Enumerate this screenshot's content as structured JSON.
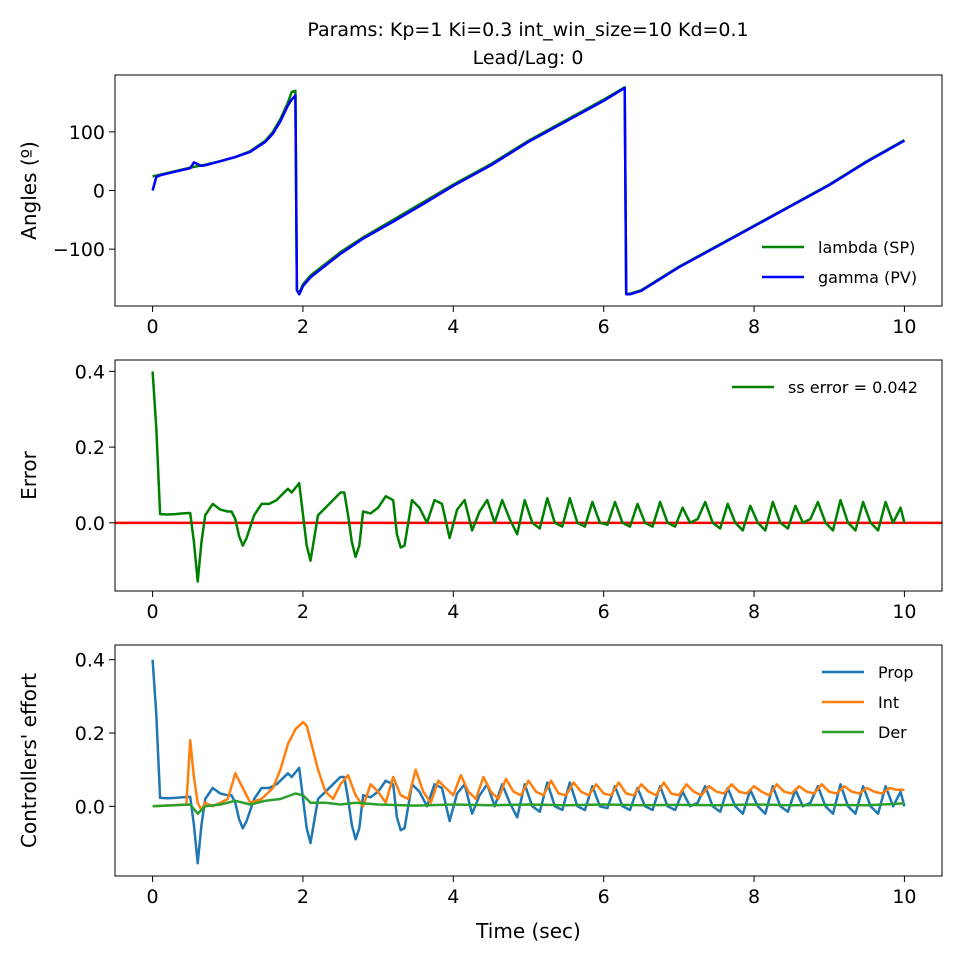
{
  "figure": {
    "title_line1": "Params: Kp=1 Ki=0.3 int_win_size=10 Kd=0.1",
    "title_line2": "Lead/Lag: 0",
    "xlabel": "Time (sec)"
  },
  "chart_data": [
    {
      "type": "line",
      "ylabel": "Angles (º)",
      "xlim": [
        -0.5,
        10.5
      ],
      "ylim": [
        -197,
        197
      ],
      "xticks": [
        0,
        2,
        4,
        6,
        8,
        10
      ],
      "yticks": [
        -100,
        0,
        100
      ],
      "ytick_labels": [
        "−100",
        "0",
        "100"
      ],
      "legend": "lower-right",
      "series": [
        {
          "name": "lambda (SP)",
          "color": "#008000",
          "x": [
            0,
            0.1,
            0.3,
            0.5,
            0.7,
            0.9,
            1.1,
            1.3,
            1.5,
            1.6,
            1.7,
            1.8,
            1.85,
            1.9,
            1.92,
            1.95,
            2.0,
            2.1,
            2.3,
            2.5,
            2.8,
            3.2,
            3.6,
            4.0,
            4.5,
            5.0,
            5.5,
            6.0,
            6.28,
            6.3,
            6.35,
            6.5,
            7.0,
            7.5,
            8.0,
            8.5,
            9.0,
            9.5,
            10.0
          ],
          "y": [
            24,
            27,
            33,
            39,
            44,
            50,
            57,
            67,
            85,
            100,
            122,
            150,
            168,
            170,
            -170,
            -175,
            -160,
            -145,
            -125,
            -105,
            -80,
            -50,
            -20,
            10,
            45,
            85,
            120,
            155,
            176,
            -176,
            -176,
            -170,
            -130,
            -95,
            -60,
            -25,
            10,
            50,
            86
          ]
        },
        {
          "name": "gamma (PV)",
          "color": "#0000ff",
          "x": [
            0,
            0.05,
            0.1,
            0.3,
            0.5,
            0.55,
            0.65,
            0.7,
            0.9,
            1.1,
            1.3,
            1.5,
            1.6,
            1.7,
            1.8,
            1.85,
            1.9,
            1.92,
            1.95,
            2.0,
            2.1,
            2.3,
            2.5,
            2.8,
            3.2,
            3.6,
            4.0,
            4.5,
            5.0,
            5.5,
            6.0,
            6.28,
            6.3,
            6.35,
            6.5,
            7.0,
            7.5,
            8.0,
            8.5,
            9.0,
            9.5,
            10.0
          ],
          "y": [
            0,
            23,
            26,
            32,
            38,
            48,
            42,
            43,
            50,
            57,
            66,
            83,
            97,
            118,
            145,
            155,
            162,
            -170,
            -177,
            -163,
            -148,
            -128,
            -108,
            -82,
            -53,
            -23,
            8,
            43,
            83,
            118,
            153,
            175,
            -177,
            -177,
            -171,
            -131,
            -96,
            -61,
            -26,
            9,
            49,
            85
          ]
        }
      ]
    },
    {
      "type": "line",
      "ylabel": "Error",
      "xlim": [
        -0.5,
        10.5
      ],
      "ylim": [
        -0.18,
        0.43
      ],
      "xticks": [
        0,
        2,
        4,
        6,
        8,
        10
      ],
      "yticks": [
        0.0,
        0.2,
        0.4
      ],
      "ytick_labels": [
        "0.0",
        "0.2",
        "0.4"
      ],
      "legend": "upper-right",
      "reference_line": {
        "y": 0,
        "color": "#ff0000"
      },
      "series": [
        {
          "name": "ss error = 0.042",
          "color": "#008000",
          "x": [
            0,
            0.05,
            0.1,
            0.2,
            0.3,
            0.4,
            0.5,
            0.55,
            0.6,
            0.65,
            0.7,
            0.8,
            0.9,
            1.0,
            1.05,
            1.1,
            1.15,
            1.2,
            1.25,
            1.35,
            1.45,
            1.55,
            1.65,
            1.7,
            1.8,
            1.85,
            1.95,
            2.05,
            2.1,
            2.2,
            2.3,
            2.4,
            2.5,
            2.55,
            2.6,
            2.65,
            2.7,
            2.75,
            2.8,
            2.9,
            3.0,
            3.1,
            3.2,
            3.25,
            3.3,
            3.35,
            3.45,
            3.55,
            3.65,
            3.75,
            3.85,
            3.95,
            4.05,
            4.15,
            4.25,
            4.35,
            4.45,
            4.55,
            4.65,
            4.75,
            4.85,
            4.95,
            5.05,
            5.15,
            5.25,
            5.35,
            5.45,
            5.55,
            5.65,
            5.75,
            5.85,
            5.95,
            6.05,
            6.15,
            6.25,
            6.35,
            6.45,
            6.55,
            6.65,
            6.75,
            6.85,
            6.95,
            7.05,
            7.15,
            7.25,
            7.35,
            7.45,
            7.55,
            7.65,
            7.75,
            7.85,
            7.95,
            8.05,
            8.15,
            8.25,
            8.35,
            8.45,
            8.55,
            8.65,
            8.75,
            8.85,
            8.95,
            9.05,
            9.15,
            9.25,
            9.35,
            9.45,
            9.55,
            9.65,
            9.75,
            9.85,
            9.95,
            10.0
          ],
          "y": [
            0.4,
            0.25,
            0.023,
            0.022,
            0.023,
            0.025,
            0.026,
            -0.05,
            -0.155,
            -0.05,
            0.02,
            0.05,
            0.035,
            0.03,
            0.03,
            0.01,
            -0.035,
            -0.06,
            -0.04,
            0.02,
            0.05,
            0.05,
            0.06,
            0.07,
            0.09,
            0.08,
            0.105,
            -0.06,
            -0.1,
            0.02,
            0.04,
            0.06,
            0.08,
            0.08,
            0.02,
            -0.05,
            -0.09,
            -0.06,
            0.03,
            0.025,
            0.04,
            0.07,
            0.06,
            -0.03,
            -0.065,
            -0.06,
            0.06,
            0.04,
            0.0,
            0.06,
            0.05,
            -0.04,
            0.035,
            0.06,
            -0.02,
            0.03,
            0.06,
            0.0,
            0.06,
            0.01,
            -0.03,
            0.06,
            0.0,
            -0.015,
            0.065,
            0.0,
            -0.01,
            0.065,
            0.0,
            -0.01,
            0.055,
            0.0,
            -0.005,
            0.055,
            0.0,
            -0.01,
            0.05,
            0.0,
            -0.01,
            0.055,
            0.0,
            -0.01,
            0.04,
            0.0,
            0.01,
            0.055,
            0.0,
            -0.015,
            0.05,
            0.0,
            -0.02,
            0.045,
            0.0,
            -0.02,
            0.055,
            0.0,
            -0.015,
            0.045,
            0.0,
            0.01,
            0.055,
            0.0,
            -0.02,
            0.06,
            0.0,
            -0.02,
            0.055,
            0.0,
            -0.02,
            0.055,
            0.0,
            0.04,
            0.0
          ]
        }
      ]
    },
    {
      "type": "line",
      "ylabel": "Controllers' effort",
      "xlim": [
        -0.5,
        10.5
      ],
      "ylim": [
        -0.19,
        0.44
      ],
      "xticks": [
        0,
        2,
        4,
        6,
        8,
        10
      ],
      "yticks": [
        0.0,
        0.2,
        0.4
      ],
      "ytick_labels": [
        "0.0",
        "0.2",
        "0.4"
      ],
      "xlabel": "Time (sec)",
      "legend": "upper-right",
      "series": [
        {
          "name": "Prop",
          "color": "#1f77b4",
          "x": [
            0,
            0.05,
            0.1,
            0.2,
            0.3,
            0.4,
            0.5,
            0.55,
            0.6,
            0.65,
            0.7,
            0.8,
            0.9,
            1.0,
            1.05,
            1.1,
            1.15,
            1.2,
            1.25,
            1.35,
            1.45,
            1.55,
            1.65,
            1.7,
            1.8,
            1.85,
            1.95,
            2.05,
            2.1,
            2.2,
            2.3,
            2.4,
            2.5,
            2.55,
            2.6,
            2.65,
            2.7,
            2.75,
            2.8,
            2.9,
            3.0,
            3.1,
            3.2,
            3.25,
            3.3,
            3.35,
            3.45,
            3.55,
            3.65,
            3.75,
            3.85,
            3.95,
            4.05,
            4.15,
            4.25,
            4.35,
            4.45,
            4.55,
            4.65,
            4.75,
            4.85,
            4.95,
            5.05,
            5.15,
            5.25,
            5.35,
            5.45,
            5.55,
            5.65,
            5.75,
            5.85,
            5.95,
            6.05,
            6.15,
            6.25,
            6.35,
            6.45,
            6.55,
            6.65,
            6.75,
            6.85,
            6.95,
            7.05,
            7.15,
            7.25,
            7.35,
            7.45,
            7.55,
            7.65,
            7.75,
            7.85,
            7.95,
            8.05,
            8.15,
            8.25,
            8.35,
            8.45,
            8.55,
            8.65,
            8.75,
            8.85,
            8.95,
            9.05,
            9.15,
            9.25,
            9.35,
            9.45,
            9.55,
            9.65,
            9.75,
            9.85,
            9.95,
            10.0
          ],
          "y": [
            0.4,
            0.25,
            0.023,
            0.022,
            0.023,
            0.025,
            0.026,
            -0.05,
            -0.155,
            -0.05,
            0.02,
            0.05,
            0.035,
            0.03,
            0.03,
            0.01,
            -0.035,
            -0.06,
            -0.04,
            0.02,
            0.05,
            0.05,
            0.06,
            0.07,
            0.09,
            0.08,
            0.105,
            -0.06,
            -0.1,
            0.02,
            0.04,
            0.06,
            0.08,
            0.08,
            0.02,
            -0.05,
            -0.09,
            -0.06,
            0.03,
            0.025,
            0.04,
            0.07,
            0.06,
            -0.03,
            -0.065,
            -0.06,
            0.06,
            0.04,
            0.0,
            0.06,
            0.05,
            -0.04,
            0.035,
            0.06,
            -0.02,
            0.03,
            0.06,
            0.0,
            0.06,
            0.01,
            -0.03,
            0.06,
            0.0,
            -0.015,
            0.065,
            0.0,
            -0.01,
            0.065,
            0.0,
            -0.01,
            0.055,
            0.0,
            -0.005,
            0.055,
            0.0,
            -0.01,
            0.05,
            0.0,
            -0.01,
            0.055,
            0.0,
            -0.01,
            0.04,
            0.0,
            0.01,
            0.055,
            0.0,
            -0.015,
            0.05,
            0.0,
            -0.02,
            0.045,
            0.0,
            -0.02,
            0.055,
            0.0,
            -0.015,
            0.045,
            0.0,
            0.01,
            0.055,
            0.0,
            -0.02,
            0.06,
            0.0,
            -0.02,
            0.055,
            0.0,
            -0.02,
            0.055,
            0.0,
            0.04,
            0.0
          ]
        },
        {
          "name": "Int",
          "color": "#ff7f0e",
          "x": [
            0,
            0.45,
            0.5,
            0.55,
            0.6,
            0.65,
            0.7,
            0.8,
            0.9,
            1.0,
            1.1,
            1.2,
            1.3,
            1.45,
            1.6,
            1.7,
            1.8,
            1.9,
            2.0,
            2.05,
            2.1,
            2.2,
            2.3,
            2.4,
            2.5,
            2.6,
            2.7,
            2.8,
            2.9,
            3.0,
            3.1,
            3.2,
            3.3,
            3.4,
            3.5,
            3.6,
            3.7,
            3.8,
            3.9,
            4.0,
            4.1,
            4.2,
            4.3,
            4.4,
            4.5,
            4.6,
            4.7,
            4.8,
            4.9,
            5.0,
            5.1,
            5.2,
            5.3,
            5.4,
            5.5,
            5.6,
            5.7,
            5.8,
            5.9,
            6.0,
            6.1,
            6.2,
            6.3,
            6.4,
            6.5,
            6.6,
            6.7,
            6.8,
            6.9,
            7.0,
            7.1,
            7.2,
            7.3,
            7.4,
            7.5,
            7.6,
            7.7,
            7.8,
            7.9,
            8.0,
            8.1,
            8.2,
            8.3,
            8.4,
            8.5,
            8.6,
            8.7,
            8.8,
            8.9,
            9.0,
            9.1,
            9.2,
            9.3,
            9.4,
            9.5,
            9.6,
            9.7,
            9.8,
            9.9,
            10.0
          ],
          "y": [
            0.0,
            0.005,
            0.18,
            0.08,
            0.01,
            -0.01,
            0.01,
            0.0,
            0.01,
            0.02,
            0.09,
            0.05,
            0.01,
            0.02,
            0.05,
            0.1,
            0.17,
            0.21,
            0.23,
            0.22,
            0.18,
            0.1,
            0.04,
            0.02,
            0.06,
            0.085,
            0.03,
            0.0,
            0.06,
            0.04,
            0.01,
            0.08,
            0.03,
            0.02,
            0.1,
            0.04,
            0.01,
            0.07,
            0.05,
            0.03,
            0.085,
            0.04,
            0.02,
            0.08,
            0.04,
            0.02,
            0.075,
            0.04,
            0.03,
            0.07,
            0.04,
            0.03,
            0.07,
            0.035,
            0.03,
            0.065,
            0.04,
            0.03,
            0.06,
            0.035,
            0.03,
            0.065,
            0.035,
            0.03,
            0.06,
            0.04,
            0.03,
            0.065,
            0.035,
            0.03,
            0.06,
            0.04,
            0.03,
            0.055,
            0.04,
            0.035,
            0.06,
            0.04,
            0.035,
            0.055,
            0.04,
            0.03,
            0.06,
            0.04,
            0.035,
            0.055,
            0.04,
            0.035,
            0.06,
            0.04,
            0.035,
            0.055,
            0.04,
            0.035,
            0.05,
            0.04,
            0.035,
            0.05,
            0.045,
            0.045
          ]
        },
        {
          "name": "Der",
          "color": "#2ca02c",
          "x": [
            0,
            0.5,
            0.6,
            0.7,
            0.9,
            1.1,
            1.3,
            1.5,
            1.7,
            1.9,
            2.0,
            2.1,
            2.3,
            2.5,
            2.7,
            3.0,
            3.5,
            4.0,
            4.5,
            5.0,
            5.5,
            6.0,
            6.5,
            7.0,
            7.5,
            8.0,
            8.5,
            9.0,
            9.5,
            10.0
          ],
          "y": [
            0.0,
            0.005,
            -0.02,
            0.0,
            0.005,
            0.015,
            0.005,
            0.015,
            0.02,
            0.035,
            0.03,
            0.01,
            0.01,
            0.005,
            0.01,
            0.005,
            0.002,
            0.005,
            0.003,
            0.005,
            0.003,
            0.005,
            0.003,
            0.004,
            0.003,
            0.005,
            0.003,
            0.004,
            0.003,
            0.008
          ]
        }
      ]
    }
  ]
}
